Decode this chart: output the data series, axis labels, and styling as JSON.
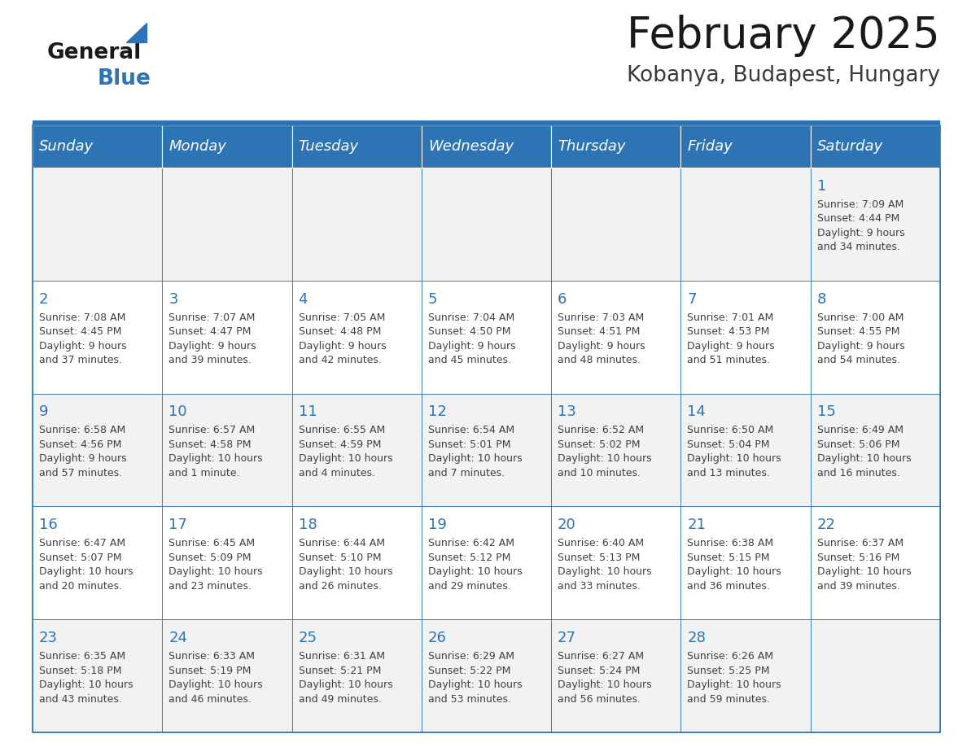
{
  "title": "February 2025",
  "subtitle": "Kobanya, Budapest, Hungary",
  "days_header": [
    "Sunday",
    "Monday",
    "Tuesday",
    "Wednesday",
    "Thursday",
    "Friday",
    "Saturday"
  ],
  "header_bg": "#2E74B5",
  "header_text_color": "#FFFFFF",
  "cell_bg_odd": "#F2F2F2",
  "cell_bg_even": "#FFFFFF",
  "border_color": "#2E74B5",
  "text_color": "#404040",
  "day_number_color": "#2E74B5",
  "logo_general_color": "#1a1a1a",
  "logo_blue_color": "#2E74B5",
  "calendar_data": [
    [
      {
        "day": null,
        "info": ""
      },
      {
        "day": null,
        "info": ""
      },
      {
        "day": null,
        "info": ""
      },
      {
        "day": null,
        "info": ""
      },
      {
        "day": null,
        "info": ""
      },
      {
        "day": null,
        "info": ""
      },
      {
        "day": 1,
        "info": "Sunrise: 7:09 AM\nSunset: 4:44 PM\nDaylight: 9 hours\nand 34 minutes."
      }
    ],
    [
      {
        "day": 2,
        "info": "Sunrise: 7:08 AM\nSunset: 4:45 PM\nDaylight: 9 hours\nand 37 minutes."
      },
      {
        "day": 3,
        "info": "Sunrise: 7:07 AM\nSunset: 4:47 PM\nDaylight: 9 hours\nand 39 minutes."
      },
      {
        "day": 4,
        "info": "Sunrise: 7:05 AM\nSunset: 4:48 PM\nDaylight: 9 hours\nand 42 minutes."
      },
      {
        "day": 5,
        "info": "Sunrise: 7:04 AM\nSunset: 4:50 PM\nDaylight: 9 hours\nand 45 minutes."
      },
      {
        "day": 6,
        "info": "Sunrise: 7:03 AM\nSunset: 4:51 PM\nDaylight: 9 hours\nand 48 minutes."
      },
      {
        "day": 7,
        "info": "Sunrise: 7:01 AM\nSunset: 4:53 PM\nDaylight: 9 hours\nand 51 minutes."
      },
      {
        "day": 8,
        "info": "Sunrise: 7:00 AM\nSunset: 4:55 PM\nDaylight: 9 hours\nand 54 minutes."
      }
    ],
    [
      {
        "day": 9,
        "info": "Sunrise: 6:58 AM\nSunset: 4:56 PM\nDaylight: 9 hours\nand 57 minutes."
      },
      {
        "day": 10,
        "info": "Sunrise: 6:57 AM\nSunset: 4:58 PM\nDaylight: 10 hours\nand 1 minute."
      },
      {
        "day": 11,
        "info": "Sunrise: 6:55 AM\nSunset: 4:59 PM\nDaylight: 10 hours\nand 4 minutes."
      },
      {
        "day": 12,
        "info": "Sunrise: 6:54 AM\nSunset: 5:01 PM\nDaylight: 10 hours\nand 7 minutes."
      },
      {
        "day": 13,
        "info": "Sunrise: 6:52 AM\nSunset: 5:02 PM\nDaylight: 10 hours\nand 10 minutes."
      },
      {
        "day": 14,
        "info": "Sunrise: 6:50 AM\nSunset: 5:04 PM\nDaylight: 10 hours\nand 13 minutes."
      },
      {
        "day": 15,
        "info": "Sunrise: 6:49 AM\nSunset: 5:06 PM\nDaylight: 10 hours\nand 16 minutes."
      }
    ],
    [
      {
        "day": 16,
        "info": "Sunrise: 6:47 AM\nSunset: 5:07 PM\nDaylight: 10 hours\nand 20 minutes."
      },
      {
        "day": 17,
        "info": "Sunrise: 6:45 AM\nSunset: 5:09 PM\nDaylight: 10 hours\nand 23 minutes."
      },
      {
        "day": 18,
        "info": "Sunrise: 6:44 AM\nSunset: 5:10 PM\nDaylight: 10 hours\nand 26 minutes."
      },
      {
        "day": 19,
        "info": "Sunrise: 6:42 AM\nSunset: 5:12 PM\nDaylight: 10 hours\nand 29 minutes."
      },
      {
        "day": 20,
        "info": "Sunrise: 6:40 AM\nSunset: 5:13 PM\nDaylight: 10 hours\nand 33 minutes."
      },
      {
        "day": 21,
        "info": "Sunrise: 6:38 AM\nSunset: 5:15 PM\nDaylight: 10 hours\nand 36 minutes."
      },
      {
        "day": 22,
        "info": "Sunrise: 6:37 AM\nSunset: 5:16 PM\nDaylight: 10 hours\nand 39 minutes."
      }
    ],
    [
      {
        "day": 23,
        "info": "Sunrise: 6:35 AM\nSunset: 5:18 PM\nDaylight: 10 hours\nand 43 minutes."
      },
      {
        "day": 24,
        "info": "Sunrise: 6:33 AM\nSunset: 5:19 PM\nDaylight: 10 hours\nand 46 minutes."
      },
      {
        "day": 25,
        "info": "Sunrise: 6:31 AM\nSunset: 5:21 PM\nDaylight: 10 hours\nand 49 minutes."
      },
      {
        "day": 26,
        "info": "Sunrise: 6:29 AM\nSunset: 5:22 PM\nDaylight: 10 hours\nand 53 minutes."
      },
      {
        "day": 27,
        "info": "Sunrise: 6:27 AM\nSunset: 5:24 PM\nDaylight: 10 hours\nand 56 minutes."
      },
      {
        "day": 28,
        "info": "Sunrise: 6:26 AM\nSunset: 5:25 PM\nDaylight: 10 hours\nand 59 minutes."
      },
      {
        "day": null,
        "info": ""
      }
    ]
  ]
}
